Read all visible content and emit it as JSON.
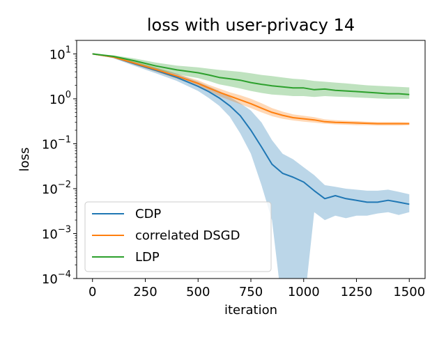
{
  "chart_data": {
    "type": "line",
    "title": "loss with user-privacy  14",
    "xlabel": "iteration",
    "ylabel": "loss",
    "xlim": [
      -75,
      1575
    ],
    "ylim": [
      0.0001,
      20
    ],
    "yscale": "log",
    "grid": false,
    "legend_position": "lower-left",
    "x_ticks": [
      0,
      250,
      500,
      750,
      1000,
      1250,
      1500
    ],
    "x_tick_labels": [
      "0",
      "250",
      "500",
      "750",
      "1000",
      "1250",
      "1500"
    ],
    "y_ticks": [
      0.0001,
      0.001,
      0.01,
      0.1,
      1,
      10
    ],
    "y_tick_labels": [
      {
        "base": "10",
        "exp": "−4"
      },
      {
        "base": "10",
        "exp": "−3"
      },
      {
        "base": "10",
        "exp": "−2"
      },
      {
        "base": "10",
        "exp": "−1"
      },
      {
        "base": "10",
        "exp": "0"
      },
      {
        "base": "10",
        "exp": "1"
      }
    ],
    "series": [
      {
        "name": "CDP",
        "color": "#1f77b4",
        "x": [
          0,
          100,
          200,
          300,
          400,
          500,
          550,
          600,
          650,
          700,
          750,
          800,
          850,
          900,
          950,
          1000,
          1050,
          1100,
          1150,
          1200,
          1250,
          1300,
          1350,
          1400,
          1450,
          1500
        ],
        "y": [
          10,
          8.5,
          6.0,
          4.3,
          3.0,
          1.9,
          1.45,
          1.05,
          0.7,
          0.42,
          0.2,
          0.085,
          0.035,
          0.022,
          0.018,
          0.014,
          0.009,
          0.006,
          0.007,
          0.006,
          0.0055,
          0.005,
          0.005,
          0.0055,
          0.005,
          0.0045
        ],
        "lower": [
          10,
          8.0,
          5.4,
          3.7,
          2.5,
          1.5,
          1.05,
          0.7,
          0.4,
          0.17,
          0.06,
          0.012,
          0.002,
          2e-05,
          2e-05,
          2e-05,
          0.003,
          0.002,
          0.0025,
          0.0022,
          0.0025,
          0.0025,
          0.0028,
          0.003,
          0.0026,
          0.003
        ],
        "upper": [
          10,
          9.0,
          6.6,
          4.9,
          3.6,
          2.4,
          1.9,
          1.5,
          1.1,
          0.8,
          0.55,
          0.3,
          0.12,
          0.06,
          0.045,
          0.03,
          0.02,
          0.012,
          0.011,
          0.01,
          0.0095,
          0.009,
          0.009,
          0.0095,
          0.0085,
          0.0075
        ]
      },
      {
        "name": "correlated DSGD",
        "color": "#ff7f0e",
        "x": [
          0,
          100,
          200,
          300,
          400,
          500,
          550,
          600,
          650,
          700,
          750,
          800,
          850,
          900,
          950,
          1000,
          1050,
          1100,
          1150,
          1200,
          1250,
          1300,
          1350,
          1400,
          1450,
          1500
        ],
        "y": [
          10,
          8.5,
          6.2,
          4.5,
          3.2,
          2.2,
          1.75,
          1.4,
          1.15,
          0.95,
          0.78,
          0.62,
          0.5,
          0.43,
          0.38,
          0.36,
          0.34,
          0.31,
          0.3,
          0.295,
          0.29,
          0.285,
          0.28,
          0.28,
          0.28,
          0.28
        ],
        "lower": [
          10,
          8.1,
          5.7,
          4.0,
          2.8,
          1.9,
          1.5,
          1.15,
          0.93,
          0.76,
          0.62,
          0.5,
          0.41,
          0.36,
          0.33,
          0.31,
          0.295,
          0.28,
          0.27,
          0.265,
          0.26,
          0.26,
          0.255,
          0.255,
          0.255,
          0.26
        ],
        "upper": [
          10,
          8.9,
          6.8,
          5.0,
          3.6,
          2.6,
          2.05,
          1.7,
          1.4,
          1.2,
          1.0,
          0.8,
          0.62,
          0.52,
          0.45,
          0.42,
          0.39,
          0.35,
          0.335,
          0.325,
          0.32,
          0.31,
          0.305,
          0.305,
          0.305,
          0.3
        ]
      },
      {
        "name": "LDP",
        "color": "#2ca02c",
        "x": [
          0,
          100,
          200,
          300,
          400,
          500,
          550,
          600,
          650,
          700,
          750,
          800,
          850,
          900,
          950,
          1000,
          1050,
          1100,
          1150,
          1200,
          1250,
          1300,
          1350,
          1400,
          1450,
          1500
        ],
        "y": [
          10,
          8.8,
          7.0,
          5.4,
          4.4,
          3.8,
          3.4,
          3.0,
          2.8,
          2.6,
          2.3,
          2.1,
          1.95,
          1.85,
          1.75,
          1.75,
          1.6,
          1.65,
          1.55,
          1.5,
          1.45,
          1.4,
          1.35,
          1.3,
          1.3,
          1.25
        ],
        "lower": [
          10,
          8.3,
          6.2,
          4.6,
          3.5,
          2.9,
          2.5,
          2.1,
          1.9,
          1.7,
          1.5,
          1.35,
          1.25,
          1.2,
          1.15,
          1.15,
          1.1,
          1.15,
          1.12,
          1.1,
          1.07,
          1.05,
          1.02,
          1.0,
          1.0,
          1.0
        ],
        "upper": [
          10,
          9.3,
          7.9,
          6.4,
          5.5,
          5.0,
          4.7,
          4.4,
          4.2,
          4.0,
          3.7,
          3.4,
          3.2,
          3.0,
          2.8,
          2.7,
          2.5,
          2.4,
          2.3,
          2.2,
          2.1,
          2.0,
          1.95,
          1.9,
          1.85,
          1.8
        ]
      }
    ]
  }
}
